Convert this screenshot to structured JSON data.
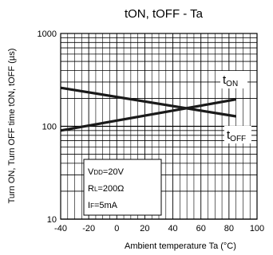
{
  "chart_data": {
    "type": "line",
    "title": "tON, tOFF - Ta",
    "xlabel": "Ambient temperature Ta (°C)",
    "ylabel": "Turn ON, Turn OFF time tON, tOFF (µs)",
    "xlim": [
      -40,
      100
    ],
    "ylim": [
      10,
      1000
    ],
    "y_scale": "log",
    "grid": true,
    "x_ticks": [
      -40,
      -20,
      0,
      20,
      40,
      60,
      80,
      100
    ],
    "x_tick_labels": [
      "-40",
      "-20",
      "0",
      "20",
      "40",
      "60",
      "80",
      "100"
    ],
    "y_ticks": [
      10,
      100,
      1000
    ],
    "y_tick_labels": [
      "10",
      "100",
      "1000"
    ],
    "series": [
      {
        "name": "t_ON",
        "label_main": "t",
        "label_sub": "ON",
        "x": [
          -40,
          85
        ],
        "y": [
          90,
          195
        ]
      },
      {
        "name": "t_OFF",
        "label_main": "t",
        "label_sub": "OFF",
        "x": [
          -40,
          85
        ],
        "y": [
          260,
          128
        ]
      }
    ],
    "conditions": [
      {
        "main": "V",
        "sub": "DD",
        "rest": "=20V"
      },
      {
        "main": "R",
        "sub": "L",
        "rest": "=200Ω"
      },
      {
        "main": "I",
        "sub": "F",
        "rest": "=5mA"
      }
    ],
    "line_color": "#1a1a1a"
  }
}
